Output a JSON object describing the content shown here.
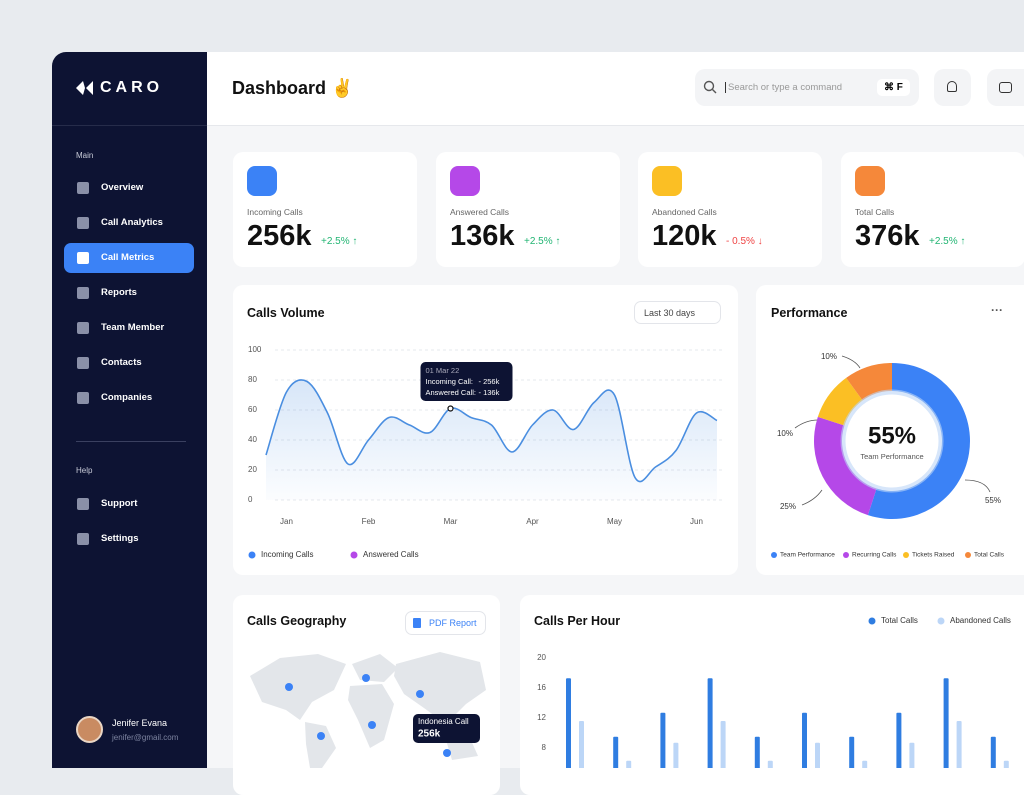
{
  "sidebar": {
    "logo": "CARO",
    "sections": [
      {
        "title": "Main",
        "items": [
          {
            "label": "Overview"
          },
          {
            "label": "Call Analytics"
          },
          {
            "label": "Call Metrics",
            "active": true
          },
          {
            "label": "Reports"
          },
          {
            "label": "Team Member"
          },
          {
            "label": "Contacts"
          },
          {
            "label": "Companies"
          }
        ]
      },
      {
        "title": "Help",
        "items": [
          {
            "label": "Support"
          },
          {
            "label": "Settings"
          }
        ]
      }
    ],
    "user": {
      "name": "Jenifer Evana",
      "email": "jenifer@gmail.com"
    }
  },
  "header": {
    "title": "Dashboard ✌️",
    "search_placeholder": "Search or type a command",
    "shortcut": "⌘ F"
  },
  "stats": [
    {
      "label": "Incoming Calls",
      "value": "256k",
      "change": "+2.5% ↑",
      "trend": "up",
      "color": "#3b82f6"
    },
    {
      "label": "Answered Calls",
      "value": "136k",
      "change": "+2.5% ↑",
      "trend": "up",
      "color": "#b548e8"
    },
    {
      "label": "Abandoned Calls",
      "value": "120k",
      "change": "- 0.5% ↓",
      "trend": "down",
      "color": "#fbbf24"
    },
    {
      "label": "Total Calls",
      "value": "376k",
      "change": "+2.5% ↑",
      "trend": "up",
      "color": "#f5883a"
    }
  ],
  "calls_volume": {
    "title": "Calls Volume",
    "filter": "Last 30 days",
    "type": "line",
    "categories": [
      null,
      "Jan",
      null,
      null,
      null,
      "Feb",
      null,
      null,
      null,
      "Mar",
      null,
      null,
      null,
      "Apr",
      null,
      null,
      null,
      "May",
      null,
      null,
      null,
      "Jun",
      null
    ],
    "series": [
      {
        "color": "#4a8ee0",
        "values": [
          30,
          72,
          79,
          58,
          24,
          40,
          55,
          50,
          45,
          61,
          55,
          50,
          32,
          50,
          60,
          47,
          65,
          70,
          15,
          22,
          33,
          58,
          53
        ]
      }
    ],
    "ylim": [
      0,
      100
    ],
    "yticks": [
      0,
      20,
      40,
      60,
      80,
      100
    ],
    "grid": true,
    "legend": [
      {
        "name": "Incoming Calls",
        "color": "#3b82f6"
      },
      {
        "name": "Answered Calls",
        "color": "#b548e8"
      }
    ],
    "tooltip": {
      "index": 9,
      "date": "01 Mar 22",
      "rows": [
        [
          "Incoming Call:",
          "- 256k"
        ],
        [
          "Answered Call:",
          "- 136k"
        ]
      ]
    }
  },
  "performance": {
    "title": "Performance",
    "type": "pie",
    "center_value": "55%",
    "center_label": "Team Performance",
    "categories": [
      "Team Performance",
      "Recurring Calls",
      "Tickets Raised",
      "Total Calls"
    ],
    "values": [
      55,
      25,
      10,
      10
    ],
    "value_labels": [
      "55%",
      "25%",
      "10%",
      "10%"
    ],
    "colors": [
      "#3b82f6",
      "#b548e8",
      "#fbbf24",
      "#f5883a"
    ]
  },
  "geography": {
    "title": "Calls Geography",
    "button": "PDF Report",
    "tooltip": {
      "title": "Indonesia Call",
      "value": "256k"
    }
  },
  "calls_per_hour": {
    "title": "Calls Per Hour",
    "type": "bar",
    "categories": [
      null,
      null,
      null,
      null,
      null,
      null,
      null,
      null,
      null,
      null
    ],
    "series": [
      {
        "name": "Total Calls",
        "color": "#2f7de1",
        "values": [
          17.3,
          9.5,
          12.7,
          17.3,
          9.5,
          12.7,
          9.5,
          12.7,
          17.3,
          9.5
        ]
      },
      {
        "name": "Abandoned Calls",
        "color": "#bcd6f7",
        "values": [
          11.6,
          6.3,
          8.7,
          11.6,
          6.3,
          8.7,
          6.3,
          8.7,
          11.6,
          6.3
        ]
      }
    ],
    "ylim": [
      0,
      20
    ],
    "yticks": [
      8,
      12,
      16,
      20
    ]
  }
}
